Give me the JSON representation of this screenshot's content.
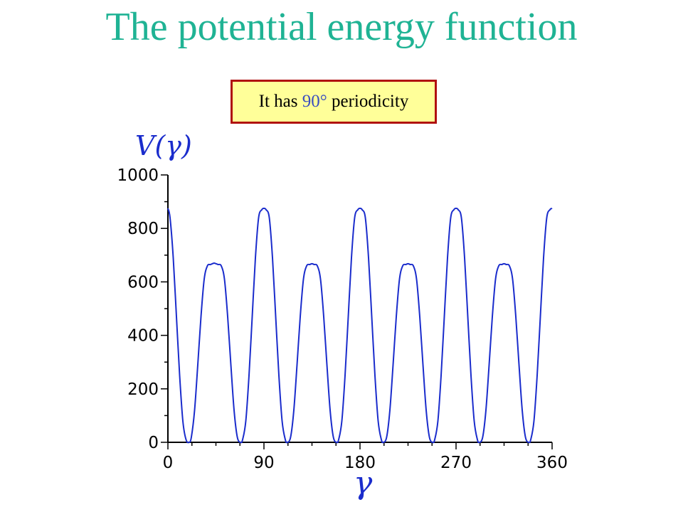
{
  "colors": {
    "title": "#1fb394",
    "callout_bg": "#ffff99",
    "callout_border": "#b01010",
    "highlight": "#3a4ec0",
    "curve": "#1a2ccc",
    "axis": "#000000"
  },
  "slide": {
    "title": "The potential energy function"
  },
  "callout": {
    "text_before": "It has ",
    "highlight": "90°",
    "text_after": " periodicity"
  },
  "chart_data": {
    "type": "line",
    "title": "",
    "ylabel": "V(γ)",
    "xlabel": "γ",
    "xlim": [
      0,
      360
    ],
    "ylim": [
      0,
      1000
    ],
    "x_ticks": [
      0,
      90,
      180,
      270,
      360
    ],
    "x_tick_labels": [
      "0",
      "90",
      "180",
      "270",
      "360"
    ],
    "y_ticks": [
      0,
      200,
      400,
      600,
      800,
      1000
    ],
    "y_tick_labels": [
      "0",
      "200",
      "400",
      "600",
      "800",
      "1000"
    ],
    "grid": false,
    "series": [
      {
        "x": [
          0,
          2,
          5,
          8,
          11,
          14,
          17,
          20,
          22,
          25,
          28,
          31,
          34,
          37,
          40,
          43,
          45,
          47,
          50,
          53,
          56,
          59,
          62,
          65,
          68,
          70,
          73,
          76,
          79,
          82,
          85,
          88,
          90,
          92,
          95,
          98,
          101,
          104,
          107,
          110,
          112,
          115,
          118,
          121,
          124,
          127,
          130,
          133,
          135,
          137,
          140,
          143,
          146,
          149,
          152,
          155,
          158,
          160,
          163,
          166,
          169,
          172,
          175,
          178,
          180,
          182,
          185,
          188,
          191,
          194,
          197,
          200,
          202,
          205,
          208,
          211,
          214,
          217,
          220,
          223,
          225,
          227,
          230,
          233,
          236,
          239,
          242,
          245,
          248,
          250,
          253,
          256,
          259,
          262,
          265,
          268,
          270,
          272,
          275,
          278,
          281,
          284,
          287,
          290,
          292,
          295,
          298,
          301,
          304,
          307,
          310,
          313,
          315,
          317,
          320,
          323,
          326,
          329,
          332,
          335,
          338,
          340,
          343,
          346,
          349,
          352,
          355,
          358,
          360
        ],
        "y": [
          875,
          840,
          690,
          470,
          250,
          80,
          10,
          0,
          20,
          120,
          290,
          470,
          610,
          660,
          665,
          670,
          668,
          665,
          660,
          610,
          470,
          290,
          120,
          20,
          0,
          10,
          80,
          250,
          470,
          690,
          840,
          870,
          875,
          870,
          840,
          690,
          470,
          250,
          80,
          10,
          0,
          20,
          120,
          290,
          470,
          610,
          660,
          665,
          668,
          665,
          660,
          610,
          470,
          290,
          120,
          20,
          0,
          10,
          80,
          250,
          470,
          690,
          840,
          870,
          875,
          870,
          840,
          690,
          470,
          250,
          80,
          10,
          0,
          20,
          120,
          290,
          470,
          610,
          660,
          665,
          668,
          665,
          660,
          610,
          470,
          290,
          120,
          20,
          0,
          10,
          80,
          250,
          470,
          690,
          840,
          870,
          875,
          870,
          840,
          690,
          470,
          250,
          80,
          10,
          0,
          20,
          120,
          290,
          470,
          610,
          660,
          665,
          668,
          665,
          660,
          610,
          470,
          290,
          120,
          20,
          0,
          10,
          80,
          250,
          470,
          690,
          840,
          870,
          875
        ]
      }
    ]
  }
}
